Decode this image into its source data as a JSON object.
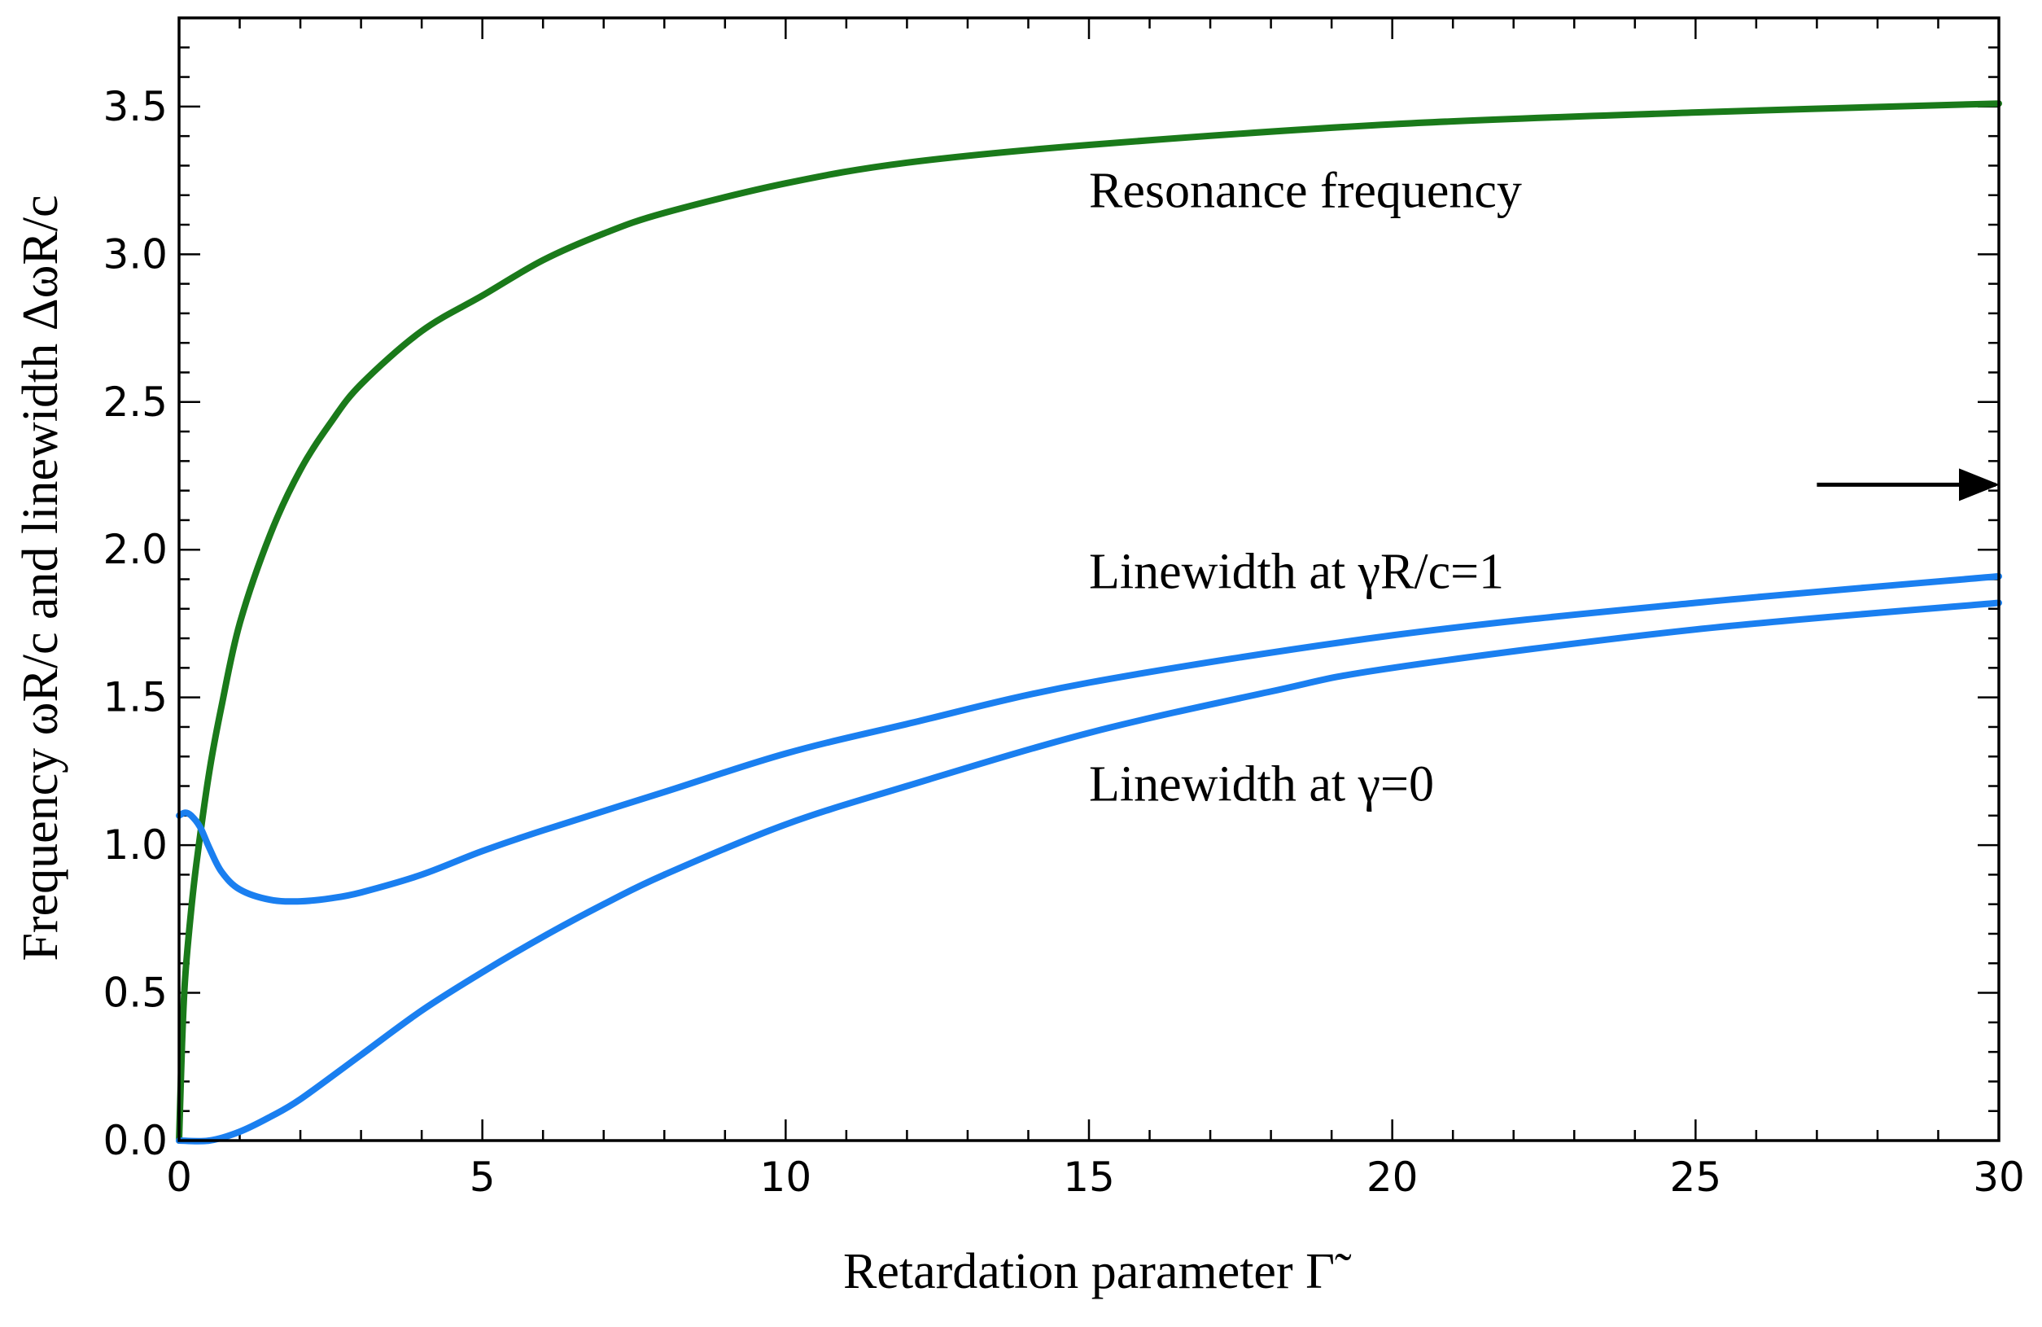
{
  "chart_data": {
    "type": "line",
    "xlabel": "Retardation parameter Γ̃",
    "ylabel": "Frequency ωR/c and linewidth ΔωR/c",
    "xlim": [
      0,
      30
    ],
    "ylim": [
      0,
      3.8
    ],
    "x_ticks": [
      0,
      5,
      10,
      15,
      20,
      25,
      30
    ],
    "x_tick_labels": [
      "0",
      "5",
      "10",
      "15",
      "20",
      "25",
      "30"
    ],
    "y_ticks": [
      0,
      0.5,
      1.0,
      1.5,
      2.0,
      2.5,
      3.0,
      3.5
    ],
    "y_tick_labels": [
      "0.0",
      "0.5",
      "1.0",
      "1.5",
      "2.0",
      "2.5",
      "3.0",
      "3.5"
    ],
    "grid": false,
    "series": [
      {
        "name": "Resonance frequency",
        "color": "#1a7a1a",
        "x": [
          0,
          0.05,
          0.1,
          0.2,
          0.3,
          0.5,
          0.7,
          1.0,
          1.5,
          2.0,
          2.5,
          3.0,
          4.0,
          5.0,
          6.0,
          7.0,
          8.0,
          10.0,
          12.0,
          15.0,
          20.0,
          25.0,
          30.0
        ],
        "values": [
          0,
          0.33,
          0.55,
          0.78,
          0.96,
          1.25,
          1.47,
          1.75,
          2.05,
          2.27,
          2.43,
          2.56,
          2.74,
          2.86,
          2.98,
          3.07,
          3.14,
          3.24,
          3.31,
          3.37,
          3.44,
          3.48,
          3.51
        ]
      },
      {
        "name": "Linewidth at γR/c=1",
        "color": "#1a7ff0",
        "x": [
          0,
          0.1,
          0.2,
          0.35,
          0.5,
          0.7,
          1.0,
          1.5,
          2.0,
          2.5,
          3.0,
          4.0,
          5.0,
          6.0,
          8.0,
          10.0,
          12.0,
          15.0,
          20.0,
          25.0,
          30.0
        ],
        "values": [
          1.1,
          1.11,
          1.1,
          1.06,
          0.99,
          0.91,
          0.85,
          0.815,
          0.81,
          0.82,
          0.84,
          0.9,
          0.98,
          1.05,
          1.18,
          1.31,
          1.41,
          1.55,
          1.71,
          1.82,
          1.91
        ]
      },
      {
        "name": "Linewidth at γ=0",
        "color": "#1a7ff0",
        "x": [
          0,
          0.5,
          1.0,
          1.5,
          2.0,
          3.0,
          4.0,
          5.0,
          6.0,
          7.0,
          8.0,
          10.0,
          12.0,
          15.0,
          18.0,
          20.0,
          25.0,
          30.0
        ],
        "values": [
          0,
          0.0,
          0.03,
          0.08,
          0.14,
          0.29,
          0.44,
          0.57,
          0.69,
          0.8,
          0.9,
          1.07,
          1.2,
          1.38,
          1.52,
          1.6,
          1.73,
          1.82
        ]
      }
    ],
    "annotations": [
      {
        "text": "Resonance frequency",
        "x": 15.0,
        "y": 3.16
      },
      {
        "text": "Linewidth at γR/c=1",
        "x": 15.0,
        "y": 1.87
      },
      {
        "text": "Linewidth at γ=0",
        "x": 15.0,
        "y": 1.15
      }
    ],
    "arrow": {
      "from": [
        27.0,
        2.22
      ],
      "to": [
        30.0,
        2.22
      ],
      "meaning": "axis limit continuation"
    }
  }
}
